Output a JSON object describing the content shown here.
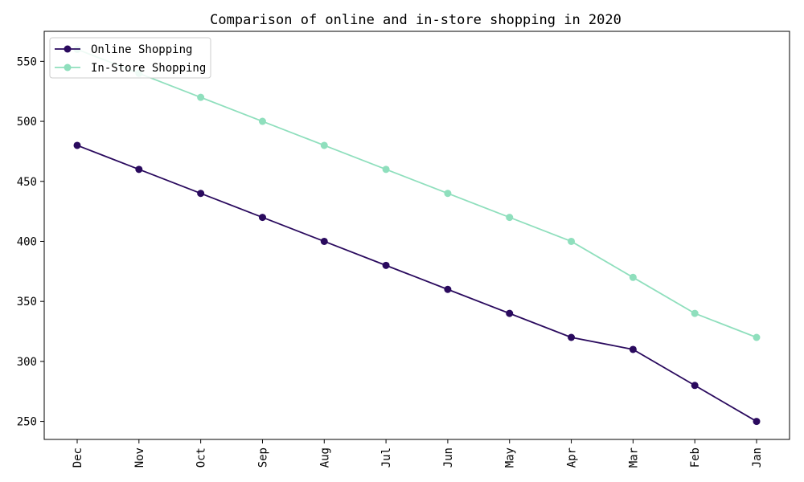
{
  "chart_data": {
    "type": "line",
    "title": "Comparison of online and in-store shopping in 2020",
    "xlabel": "",
    "ylabel": "",
    "categories": [
      "Dec",
      "Nov",
      "Oct",
      "Sep",
      "Aug",
      "Jul",
      "Jun",
      "May",
      "Apr",
      "Mar",
      "Feb",
      "Jan"
    ],
    "series": [
      {
        "name": "Online Shopping",
        "color": "#2a0a5e",
        "values": [
          480,
          460,
          440,
          420,
          400,
          380,
          360,
          340,
          320,
          310,
          280,
          250
        ]
      },
      {
        "name": "In-Store Shopping",
        "color": "#8fdfbd",
        "values": [
          560,
          540,
          520,
          500,
          480,
          460,
          440,
          420,
          400,
          370,
          340,
          320
        ]
      }
    ],
    "yticks": [
      250,
      300,
      350,
      400,
      450,
      500,
      550
    ],
    "ylim": [
      235,
      575
    ],
    "grid": false,
    "legend_position": "top-left"
  }
}
